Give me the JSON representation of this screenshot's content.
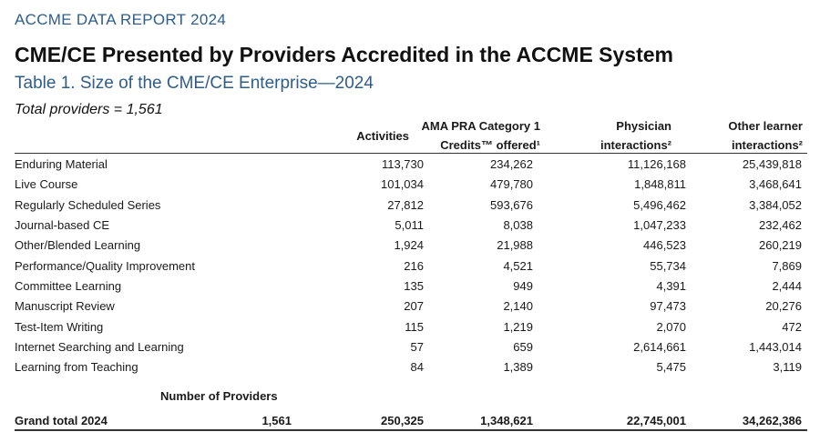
{
  "header": {
    "report_label": "ACCME DATA REPORT 2024",
    "title": "CME/CE Presented by Providers Accredited in the ACCME System",
    "subtitle": "Table 1. Size of the CME/CE Enterprise—2024",
    "total_providers": "Total providers = 1,561"
  },
  "table": {
    "columns": [
      {
        "line1": "",
        "line2": "Activities"
      },
      {
        "line1": "AMA PRA Category 1",
        "line2": "Credits™ offered¹"
      },
      {
        "line1": "Physician",
        "line2": "interactions²"
      },
      {
        "line1": "Other learner",
        "line2": "interactions²"
      }
    ],
    "rows": [
      {
        "label": "Enduring Material",
        "activities": "113,730",
        "credits": "234,262",
        "physician": "11,126,168",
        "other": "25,439,818"
      },
      {
        "label": "Live Course",
        "activities": "101,034",
        "credits": "479,780",
        "physician": "1,848,811",
        "other": "3,468,641"
      },
      {
        "label": "Regularly Scheduled Series",
        "activities": "27,812",
        "credits": "593,676",
        "physician": "5,496,462",
        "other": "3,384,052"
      },
      {
        "label": "Journal-based CE",
        "activities": "5,011",
        "credits": "8,038",
        "physician": "1,047,233",
        "other": "232,462"
      },
      {
        "label": "Other/Blended Learning",
        "activities": "1,924",
        "credits": "21,988",
        "physician": "446,523",
        "other": "260,219"
      },
      {
        "label": "Performance/Quality Improvement",
        "activities": "216",
        "credits": "4,521",
        "physician": "55,734",
        "other": "7,869"
      },
      {
        "label": "Committee Learning",
        "activities": "135",
        "credits": "949",
        "physician": "4,391",
        "other": "2,444"
      },
      {
        "label": "Manuscript Review",
        "activities": "207",
        "credits": "2,140",
        "physician": "97,473",
        "other": "20,276"
      },
      {
        "label": "Test-Item Writing",
        "activities": "115",
        "credits": "1,219",
        "physician": "2,070",
        "other": "472"
      },
      {
        "label": "Internet Searching and Learning",
        "activities": "57",
        "credits": "659",
        "physician": "2,614,661",
        "other": "1,443,014"
      },
      {
        "label": "Learning from Teaching",
        "activities": "84",
        "credits": "1,389",
        "physician": "5,475",
        "other": "3,119"
      }
    ],
    "providers_header": "Number of Providers",
    "grand_total": {
      "label": "Grand total 2024",
      "providers": "1,561",
      "activities": "250,325",
      "credits": "1,348,621",
      "physician": "22,745,001",
      "other": "34,262,386"
    }
  }
}
